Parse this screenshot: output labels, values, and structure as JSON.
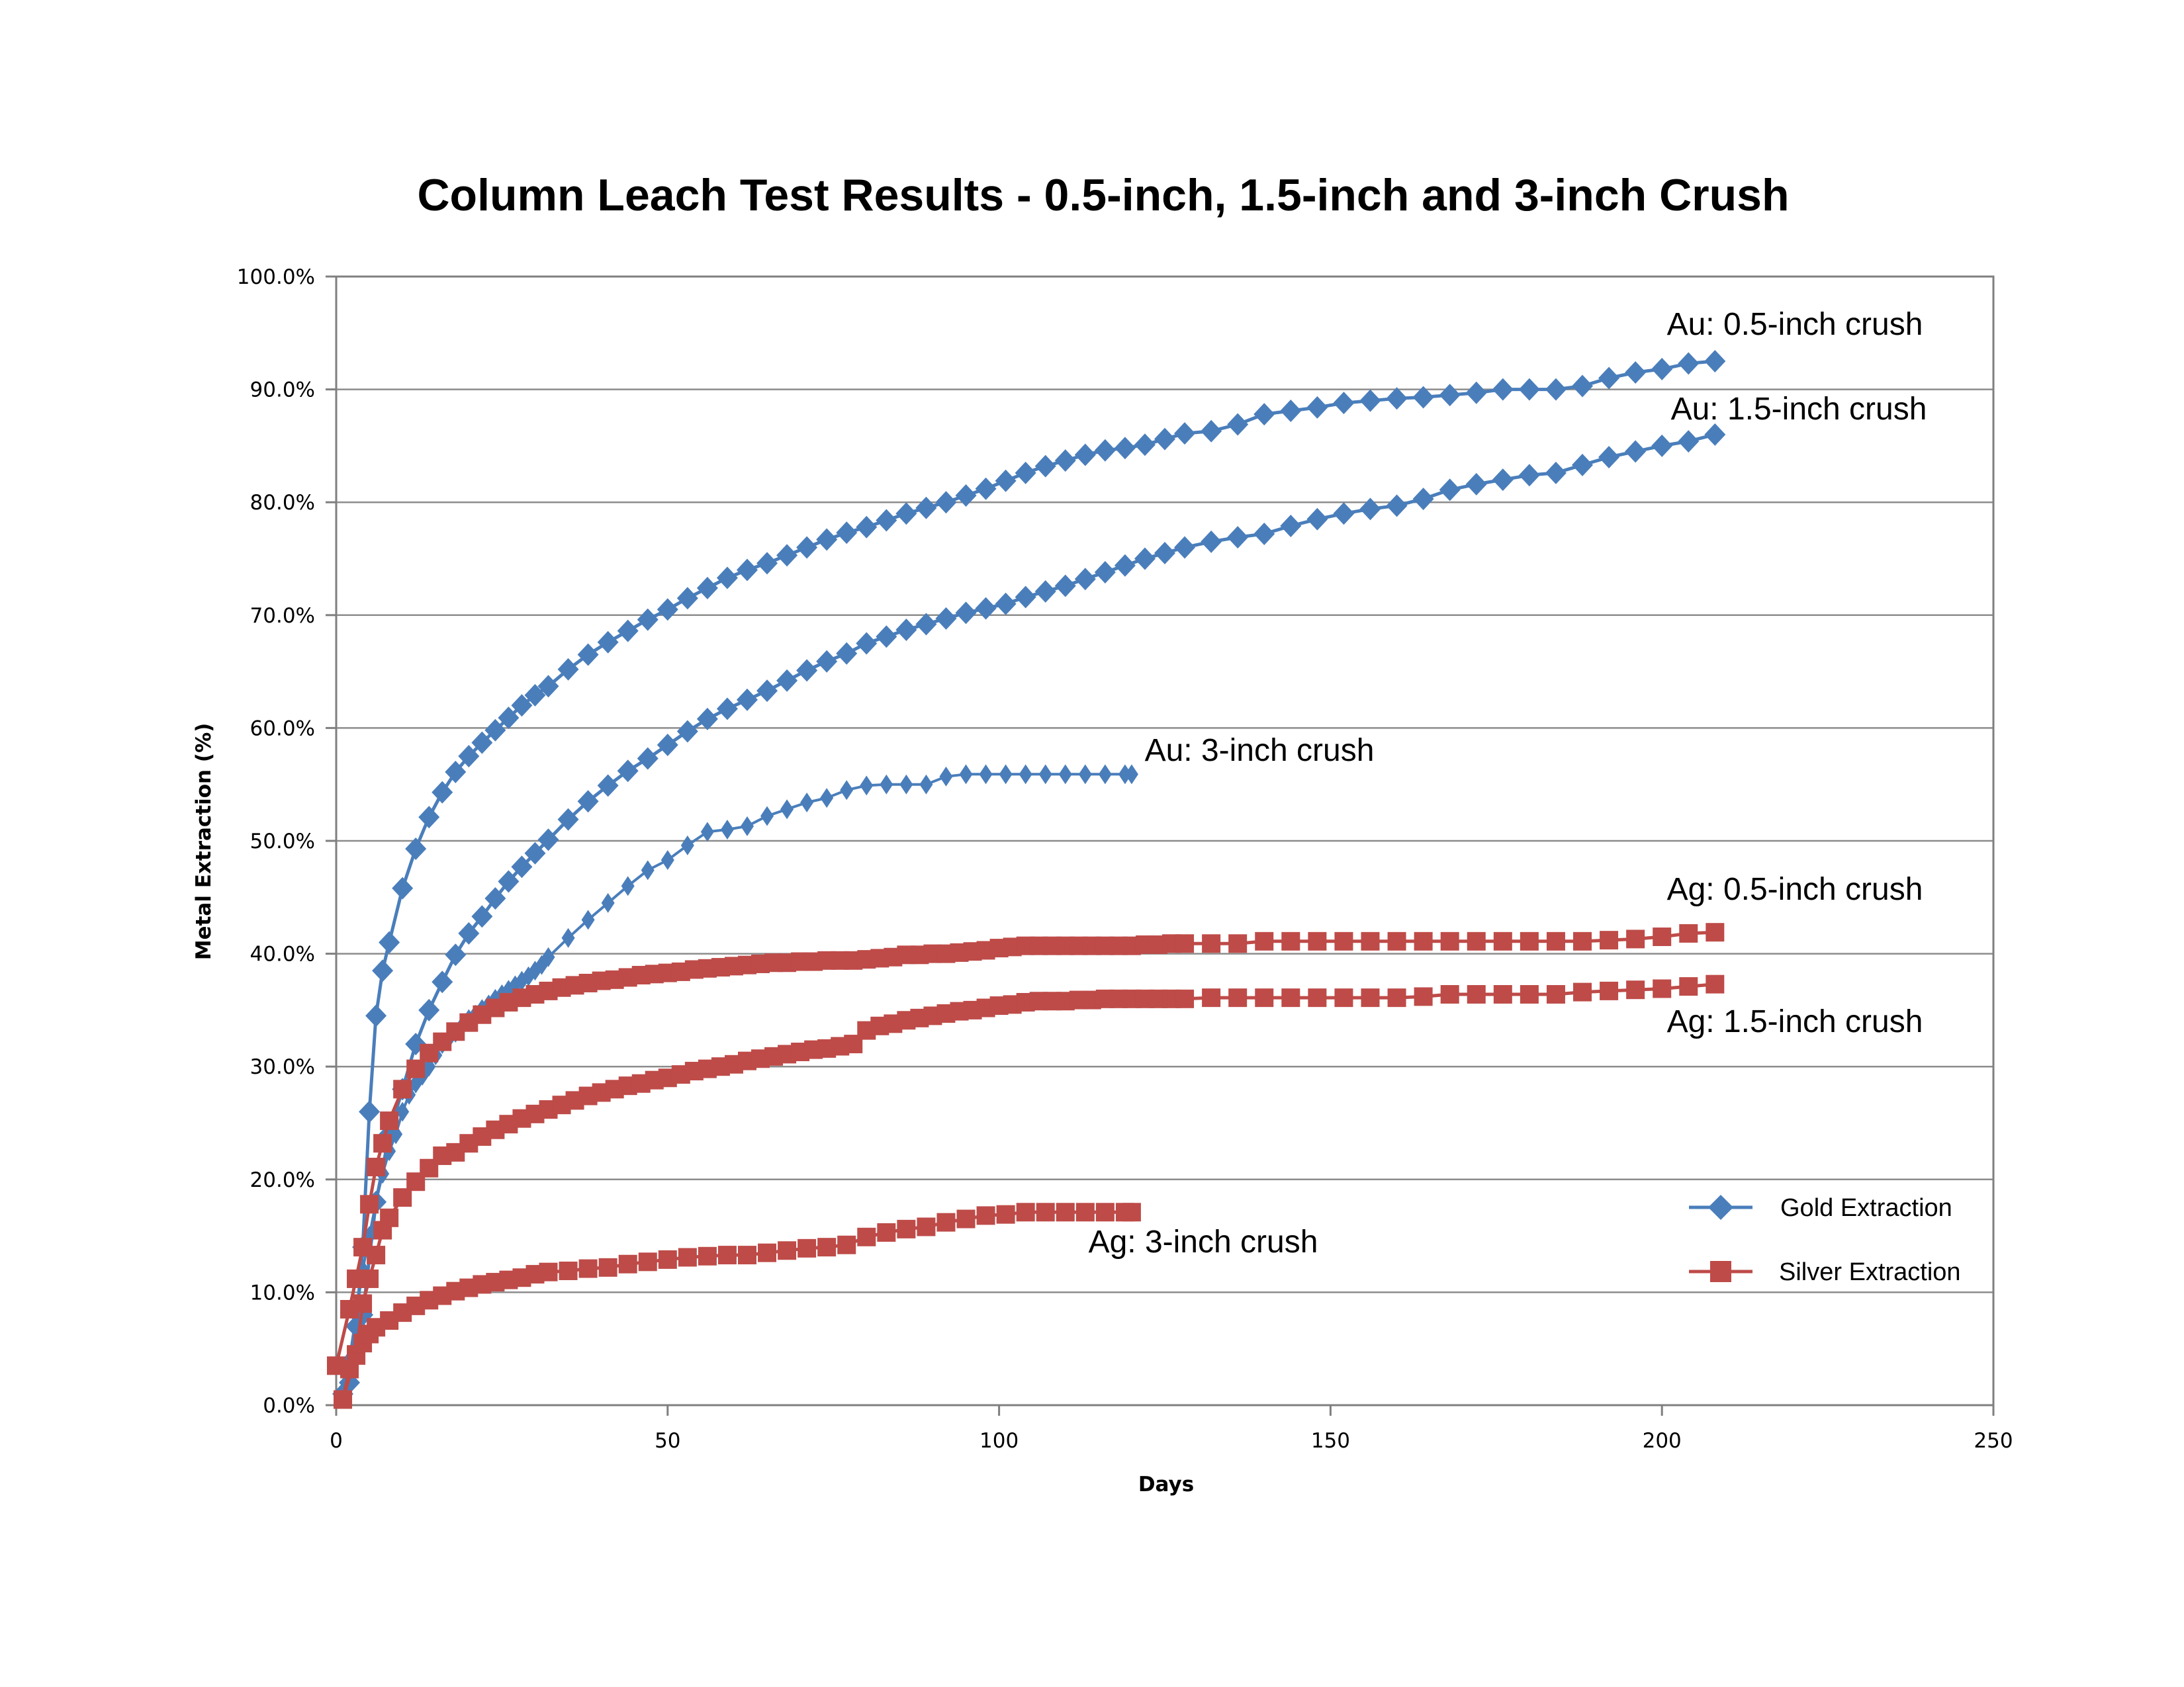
{
  "chart_data": {
    "type": "line",
    "title": "Column Leach Test Results - 0.5-inch, 1.5-inch and 3-inch Crush",
    "xlabel": "Days",
    "ylabel": "Metal Extraction (%)",
    "xlim": [
      0,
      250
    ],
    "ylim": [
      0,
      1
    ],
    "x_ticks": [
      0,
      50,
      100,
      150,
      200,
      250
    ],
    "y_ticks": [
      "0.0%",
      "10.0%",
      "20.0%",
      "30.0%",
      "40.0%",
      "50.0%",
      "60.0%",
      "70.0%",
      "80.0%",
      "90.0%",
      "100.0%"
    ],
    "grid": "horizontal",
    "legend_position": "bottom-right",
    "legend": [
      {
        "label": "Gold Extraction",
        "color": "#4a7ebb",
        "marker": "diamond"
      },
      {
        "label": "Silver Extraction",
        "color": "#be4b48",
        "marker": "square"
      }
    ],
    "series": [
      {
        "group": "gold",
        "color": "#4a7ebb",
        "marker": "diamond",
        "marker_size": "large",
        "x": [
          1,
          3,
          4,
          5,
          6,
          7,
          8,
          10,
          12,
          14,
          16,
          18,
          20,
          22,
          24,
          26,
          28,
          30,
          32,
          35,
          38,
          41,
          44,
          47,
          50,
          53,
          56,
          59,
          62,
          65,
          68,
          71,
          74,
          77,
          80,
          83,
          86,
          89,
          92,
          95,
          98,
          101,
          104,
          107,
          110,
          113,
          116,
          119,
          122,
          125,
          128,
          132,
          136,
          140,
          144,
          148,
          152,
          156,
          160,
          164,
          168,
          172,
          176,
          180,
          184,
          188,
          192,
          196,
          200,
          204,
          208
        ],
        "y": [
          0.01,
          0.07,
          0.14,
          0.26,
          0.345,
          0.385,
          0.41,
          0.458,
          0.493,
          0.521,
          0.543,
          0.561,
          0.575,
          0.587,
          0.598,
          0.609,
          0.62,
          0.629,
          0.637,
          0.652,
          0.665,
          0.676,
          0.686,
          0.696,
          0.705,
          0.715,
          0.724,
          0.733,
          0.74,
          0.746,
          0.753,
          0.76,
          0.767,
          0.773,
          0.778,
          0.784,
          0.79,
          0.795,
          0.8,
          0.806,
          0.812,
          0.819,
          0.826,
          0.832,
          0.837,
          0.842,
          0.846,
          0.848,
          0.851,
          0.856,
          0.861,
          0.863,
          0.869,
          0.878,
          0.881,
          0.884,
          0.888,
          0.89,
          0.892,
          0.893,
          0.895,
          0.897,
          0.9,
          0.9,
          0.9,
          0.903,
          0.91,
          0.915,
          0.918,
          0.923,
          0.925
        ]
      },
      {
        "group": "gold",
        "color": "#4a7ebb",
        "marker": "diamond",
        "marker_size": "large",
        "x": [
          2,
          4,
          6,
          8,
          10,
          12,
          14,
          16,
          18,
          20,
          22,
          24,
          26,
          28,
          30,
          32,
          35,
          38,
          41,
          44,
          47,
          50,
          53,
          56,
          59,
          62,
          65,
          68,
          71,
          74,
          77,
          80,
          83,
          86,
          89,
          92,
          95,
          98,
          101,
          104,
          107,
          110,
          113,
          116,
          119,
          122,
          125,
          128,
          132,
          136,
          140,
          144,
          148,
          152,
          156,
          160,
          164,
          168,
          172,
          176,
          180,
          184,
          188,
          192,
          196,
          200,
          204,
          208
        ],
        "y": [
          0.02,
          0.08,
          0.18,
          0.24,
          0.28,
          0.32,
          0.35,
          0.375,
          0.399,
          0.418,
          0.433,
          0.449,
          0.464,
          0.477,
          0.489,
          0.501,
          0.519,
          0.535,
          0.549,
          0.562,
          0.573,
          0.585,
          0.597,
          0.608,
          0.617,
          0.625,
          0.633,
          0.642,
          0.651,
          0.659,
          0.666,
          0.675,
          0.681,
          0.687,
          0.692,
          0.697,
          0.702,
          0.706,
          0.71,
          0.716,
          0.721,
          0.726,
          0.732,
          0.738,
          0.744,
          0.75,
          0.755,
          0.76,
          0.765,
          0.769,
          0.772,
          0.779,
          0.785,
          0.79,
          0.794,
          0.797,
          0.803,
          0.811,
          0.816,
          0.82,
          0.824,
          0.826,
          0.833,
          0.84,
          0.845,
          0.85,
          0.854,
          0.86
        ]
      },
      {
        "group": "gold",
        "color": "#4a7ebb",
        "marker": "diamond",
        "marker_size": "small",
        "x": [
          1,
          2,
          3,
          4,
          5,
          6,
          7,
          8,
          9,
          10,
          11,
          12,
          13,
          14,
          15,
          16,
          17,
          18,
          19,
          20,
          21,
          22,
          23,
          24,
          25,
          26,
          27,
          28,
          29,
          30,
          31,
          32,
          35,
          38,
          41,
          44,
          47,
          50,
          53,
          56,
          59,
          62,
          65,
          68,
          71,
          74,
          77,
          80,
          83,
          86,
          89,
          92,
          95,
          98,
          101,
          104,
          107,
          110,
          113,
          116,
          119,
          120
        ],
        "y": [
          0.01,
          0.04,
          0.08,
          0.12,
          0.15,
          0.18,
          0.205,
          0.225,
          0.24,
          0.26,
          0.275,
          0.285,
          0.292,
          0.3,
          0.31,
          0.32,
          0.325,
          0.33,
          0.336,
          0.342,
          0.346,
          0.351,
          0.355,
          0.36,
          0.364,
          0.368,
          0.372,
          0.376,
          0.38,
          0.385,
          0.39,
          0.397,
          0.414,
          0.43,
          0.445,
          0.46,
          0.474,
          0.483,
          0.496,
          0.508,
          0.51,
          0.513,
          0.522,
          0.528,
          0.534,
          0.538,
          0.545,
          0.549,
          0.55,
          0.55,
          0.55,
          0.557,
          0.559,
          0.559,
          0.559,
          0.559,
          0.559,
          0.559,
          0.559,
          0.559,
          0.559,
          0.559
        ]
      },
      {
        "group": "silver",
        "color": "#be4b48",
        "marker": "square",
        "marker_size": "large",
        "x": [
          0,
          2,
          3,
          4,
          5,
          6,
          7,
          8,
          10,
          12,
          14,
          16,
          18,
          20,
          22,
          24,
          26,
          28,
          30,
          32,
          34,
          36,
          38,
          40,
          42,
          44,
          46,
          48,
          50,
          52,
          54,
          56,
          58,
          60,
          62,
          64,
          66,
          68,
          70,
          72,
          74,
          76,
          78,
          80,
          82,
          84,
          86,
          88,
          90,
          92,
          94,
          96,
          98,
          100,
          102,
          104,
          106,
          108,
          110,
          112,
          114,
          116,
          118,
          120,
          122,
          124,
          126,
          128,
          132,
          136,
          140,
          144,
          148,
          152,
          156,
          160,
          164,
          168,
          172,
          176,
          180,
          184,
          188,
          192,
          196,
          200,
          204,
          208
        ],
        "y": [
          0.035,
          0.085,
          0.112,
          0.14,
          0.178,
          0.211,
          0.232,
          0.252,
          0.28,
          0.298,
          0.312,
          0.322,
          0.331,
          0.339,
          0.346,
          0.352,
          0.357,
          0.361,
          0.364,
          0.367,
          0.37,
          0.372,
          0.374,
          0.376,
          0.377,
          0.379,
          0.381,
          0.382,
          0.383,
          0.384,
          0.386,
          0.387,
          0.388,
          0.389,
          0.39,
          0.391,
          0.392,
          0.392,
          0.393,
          0.393,
          0.394,
          0.394,
          0.394,
          0.395,
          0.396,
          0.397,
          0.399,
          0.399,
          0.4,
          0.4,
          0.401,
          0.402,
          0.403,
          0.405,
          0.406,
          0.407,
          0.407,
          0.407,
          0.407,
          0.407,
          0.407,
          0.407,
          0.407,
          0.407,
          0.408,
          0.408,
          0.409,
          0.409,
          0.409,
          0.409,
          0.411,
          0.411,
          0.411,
          0.411,
          0.411,
          0.411,
          0.411,
          0.411,
          0.411,
          0.411,
          0.411,
          0.411,
          0.411,
          0.412,
          0.413,
          0.415,
          0.418,
          0.419
        ]
      },
      {
        "group": "silver",
        "color": "#be4b48",
        "marker": "square",
        "marker_size": "large",
        "x": [
          1,
          3,
          4,
          5,
          6,
          7,
          8,
          10,
          12,
          14,
          16,
          18,
          20,
          22,
          24,
          26,
          28,
          30,
          32,
          34,
          36,
          38,
          40,
          42,
          44,
          46,
          48,
          50,
          52,
          54,
          56,
          58,
          60,
          62,
          64,
          66,
          68,
          70,
          72,
          74,
          76,
          78,
          80,
          82,
          84,
          86,
          88,
          90,
          92,
          94,
          96,
          98,
          100,
          102,
          104,
          106,
          108,
          110,
          112,
          114,
          116,
          118,
          120,
          122,
          124,
          126,
          128,
          132,
          136,
          140,
          144,
          148,
          152,
          156,
          160,
          164,
          168,
          172,
          176,
          180,
          184,
          188,
          192,
          196,
          200,
          204,
          208
        ],
        "y": [
          0.005,
          0.045,
          0.09,
          0.112,
          0.133,
          0.155,
          0.166,
          0.184,
          0.198,
          0.21,
          0.221,
          0.224,
          0.232,
          0.238,
          0.244,
          0.249,
          0.254,
          0.258,
          0.262,
          0.266,
          0.27,
          0.274,
          0.277,
          0.28,
          0.283,
          0.285,
          0.288,
          0.29,
          0.293,
          0.296,
          0.298,
          0.3,
          0.302,
          0.305,
          0.307,
          0.309,
          0.311,
          0.313,
          0.315,
          0.316,
          0.318,
          0.32,
          0.332,
          0.336,
          0.338,
          0.341,
          0.343,
          0.345,
          0.347,
          0.349,
          0.35,
          0.352,
          0.354,
          0.355,
          0.357,
          0.358,
          0.358,
          0.358,
          0.359,
          0.359,
          0.36,
          0.36,
          0.36,
          0.36,
          0.36,
          0.36,
          0.36,
          0.361,
          0.361,
          0.361,
          0.361,
          0.361,
          0.361,
          0.361,
          0.361,
          0.362,
          0.364,
          0.364,
          0.364,
          0.364,
          0.364,
          0.366,
          0.367,
          0.368,
          0.369,
          0.371,
          0.373
        ]
      },
      {
        "group": "silver",
        "color": "#be4b48",
        "marker": "square",
        "marker_size": "large",
        "x": [
          1,
          2,
          3,
          4,
          5,
          6,
          8,
          10,
          12,
          14,
          16,
          18,
          20,
          22,
          24,
          26,
          28,
          30,
          32,
          35,
          38,
          41,
          44,
          47,
          50,
          53,
          56,
          59,
          62,
          65,
          68,
          71,
          74,
          77,
          80,
          83,
          86,
          89,
          92,
          95,
          98,
          101,
          104,
          107,
          110,
          113,
          116,
          119,
          120
        ],
        "y": [
          0.005,
          0.032,
          0.044,
          0.055,
          0.063,
          0.069,
          0.075,
          0.082,
          0.088,
          0.093,
          0.097,
          0.101,
          0.104,
          0.107,
          0.109,
          0.111,
          0.113,
          0.116,
          0.118,
          0.119,
          0.121,
          0.122,
          0.125,
          0.127,
          0.129,
          0.131,
          0.132,
          0.133,
          0.133,
          0.135,
          0.137,
          0.139,
          0.14,
          0.142,
          0.149,
          0.153,
          0.156,
          0.158,
          0.162,
          0.165,
          0.168,
          0.169,
          0.171,
          0.171,
          0.171,
          0.171,
          0.171,
          0.171,
          0.171
        ]
      }
    ],
    "annotations": [
      {
        "text": "Au: 0.5-inch crush",
        "x": 208,
        "y": 0.925
      },
      {
        "text": "Au: 1.5-inch crush",
        "x": 208,
        "y": 0.86
      },
      {
        "text": "Au: 3-inch crush",
        "x": 120,
        "y": 0.559
      },
      {
        "text": "Ag: 0.5-inch crush",
        "x": 208,
        "y": 0.419
      },
      {
        "text": "Ag: 1.5-inch crush",
        "x": 208,
        "y": 0.373
      },
      {
        "text": "Ag: 3-inch crush",
        "x": 120,
        "y": 0.171
      }
    ]
  }
}
